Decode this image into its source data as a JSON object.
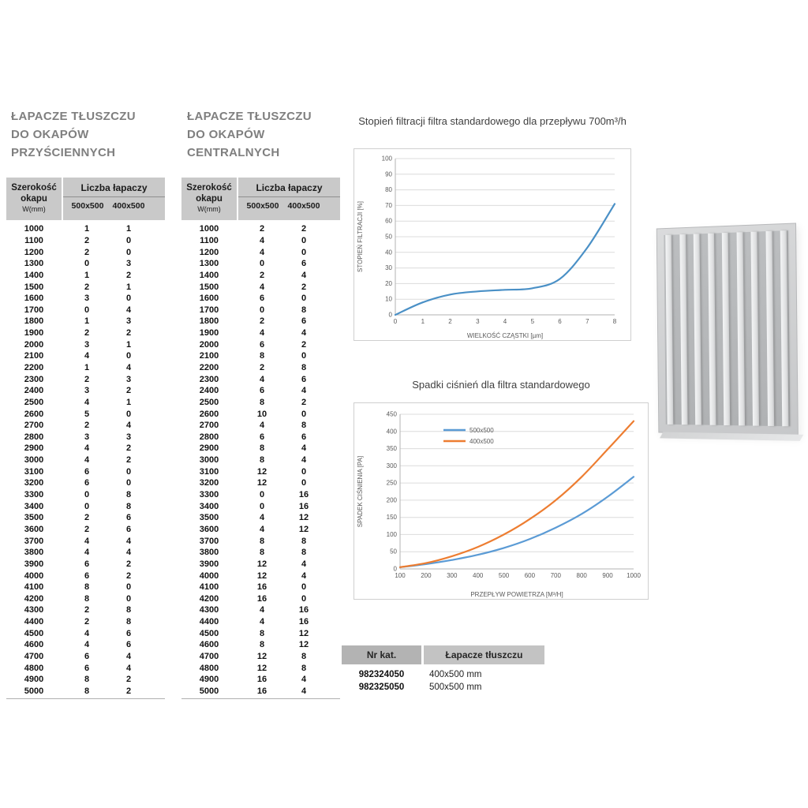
{
  "colors": {
    "title_gray": "#7f7f7f",
    "header_bg": "#c9c9c9",
    "filtration_line": "#4a90c6",
    "series_blue": "#5b9bd5",
    "series_orange": "#ed7d31"
  },
  "wall_table": {
    "title_lines": [
      "ŁAPACZE TŁUSZCZU",
      "DO OKAPÓW",
      "PRZYŚCIENNYCH"
    ],
    "rows": [
      [
        1000,
        1,
        1
      ],
      [
        1100,
        2,
        0
      ],
      [
        1200,
        2,
        0
      ],
      [
        1300,
        0,
        3
      ],
      [
        1400,
        1,
        2
      ],
      [
        1500,
        2,
        1
      ],
      [
        1600,
        3,
        0
      ],
      [
        1700,
        0,
        4
      ],
      [
        1800,
        1,
        3
      ],
      [
        1900,
        2,
        2
      ],
      [
        2000,
        3,
        1
      ],
      [
        2100,
        4,
        0
      ],
      [
        2200,
        1,
        4
      ],
      [
        2300,
        2,
        3
      ],
      [
        2400,
        3,
        2
      ],
      [
        2500,
        4,
        1
      ],
      [
        2600,
        5,
        0
      ],
      [
        2700,
        2,
        4
      ],
      [
        2800,
        3,
        3
      ],
      [
        2900,
        4,
        2
      ],
      [
        3000,
        4,
        2
      ],
      [
        3100,
        6,
        0
      ],
      [
        3200,
        6,
        0
      ],
      [
        3300,
        0,
        8
      ],
      [
        3400,
        0,
        8
      ],
      [
        3500,
        2,
        6
      ],
      [
        3600,
        2,
        6
      ],
      [
        3700,
        4,
        4
      ],
      [
        3800,
        4,
        4
      ],
      [
        3900,
        6,
        2
      ],
      [
        4000,
        6,
        2
      ],
      [
        4100,
        8,
        0
      ],
      [
        4200,
        8,
        0
      ],
      [
        4300,
        2,
        8
      ],
      [
        4400,
        2,
        8
      ],
      [
        4500,
        4,
        6
      ],
      [
        4600,
        4,
        6
      ],
      [
        4700,
        6,
        4
      ],
      [
        4800,
        6,
        4
      ],
      [
        4900,
        8,
        2
      ],
      [
        5000,
        8,
        2
      ]
    ]
  },
  "central_table": {
    "title_lines": [
      "ŁAPACZE TŁUSZCZU",
      "DO OKAPÓW",
      "CENTRALNYCH"
    ],
    "rows": [
      [
        1000,
        2,
        2
      ],
      [
        1100,
        4,
        0
      ],
      [
        1200,
        4,
        0
      ],
      [
        1300,
        0,
        6
      ],
      [
        1400,
        2,
        4
      ],
      [
        1500,
        4,
        2
      ],
      [
        1600,
        6,
        0
      ],
      [
        1700,
        0,
        8
      ],
      [
        1800,
        2,
        6
      ],
      [
        1900,
        4,
        4
      ],
      [
        2000,
        6,
        2
      ],
      [
        2100,
        8,
        0
      ],
      [
        2200,
        2,
        8
      ],
      [
        2300,
        4,
        6
      ],
      [
        2400,
        6,
        4
      ],
      [
        2500,
        8,
        2
      ],
      [
        2600,
        10,
        0
      ],
      [
        2700,
        4,
        8
      ],
      [
        2800,
        6,
        6
      ],
      [
        2900,
        8,
        4
      ],
      [
        3000,
        8,
        4
      ],
      [
        3100,
        12,
        0
      ],
      [
        3200,
        12,
        0
      ],
      [
        3300,
        0,
        16
      ],
      [
        3400,
        0,
        16
      ],
      [
        3500,
        4,
        12
      ],
      [
        3600,
        4,
        12
      ],
      [
        3700,
        8,
        8
      ],
      [
        3800,
        8,
        8
      ],
      [
        3900,
        12,
        4
      ],
      [
        4000,
        12,
        4
      ],
      [
        4100,
        16,
        0
      ],
      [
        4200,
        16,
        0
      ],
      [
        4300,
        4,
        16
      ],
      [
        4400,
        4,
        16
      ],
      [
        4500,
        8,
        12
      ],
      [
        4600,
        8,
        12
      ],
      [
        4700,
        12,
        8
      ],
      [
        4800,
        12,
        8
      ],
      [
        4900,
        16,
        4
      ],
      [
        5000,
        16,
        4
      ]
    ]
  },
  "table_header": {
    "width_label_lines": [
      "Szerokość",
      "okapu",
      "W(mm)"
    ],
    "group_label": "Liczba łapaczy",
    "col_labels": [
      "500x500",
      "400x500"
    ]
  },
  "chart_data": [
    {
      "type": "line",
      "title": "Stopień filtracji filtra standardowego dla przepływu 700m³/h",
      "xlabel": "WIELKOŚĆ CZĄSTKI [µm]",
      "ylabel": "STOPIEŃ FILTRACJI [%]",
      "xlim": [
        0,
        8
      ],
      "ylim": [
        0,
        100
      ],
      "xticks": [
        0,
        1,
        2,
        3,
        4,
        5,
        6,
        7,
        8
      ],
      "yticks": [
        0,
        10,
        20,
        30,
        40,
        50,
        60,
        70,
        80,
        90,
        100
      ],
      "grid": true,
      "legend": "none",
      "series": [
        {
          "name": "filtracja",
          "color": "#4a90c6",
          "x": [
            0,
            1,
            2,
            3,
            4,
            5,
            6,
            7,
            8
          ],
          "y": [
            0,
            8,
            13,
            15,
            16,
            17,
            23,
            43,
            71
          ]
        }
      ]
    },
    {
      "type": "line",
      "title": "Spadki ciśnień dla filtra standardowego",
      "xlabel": "PRZEPŁYW POWIETRZA [M³/H]",
      "ylabel": "SPADEK CIŚNIENIA [PA]",
      "xlim": [
        100,
        1000
      ],
      "ylim": [
        0,
        450
      ],
      "xticks": [
        100,
        200,
        300,
        400,
        500,
        600,
        700,
        800,
        900,
        1000
      ],
      "yticks": [
        0,
        50,
        100,
        150,
        200,
        250,
        300,
        350,
        400,
        450
      ],
      "grid": true,
      "legend": "inside-top",
      "series": [
        {
          "name": "500x500",
          "color": "#5b9bd5",
          "x": [
            100,
            200,
            300,
            400,
            500,
            600,
            700,
            800,
            900,
            1000
          ],
          "y": [
            5,
            14,
            26,
            41,
            61,
            87,
            120,
            160,
            210,
            268
          ]
        },
        {
          "name": "400x500",
          "color": "#ed7d31",
          "x": [
            100,
            200,
            300,
            400,
            500,
            600,
            700,
            800,
            900,
            1000
          ],
          "y": [
            5,
            17,
            37,
            64,
            100,
            145,
            200,
            268,
            348,
            430
          ]
        }
      ]
    }
  ],
  "catalog": {
    "headers": [
      "Nr kat.",
      "Łapacze tłuszczu"
    ],
    "rows": [
      [
        "982324050",
        "400x500 mm"
      ],
      [
        "982325050",
        "500x500 mm"
      ]
    ]
  },
  "filter_photo": {
    "slats": 9
  }
}
